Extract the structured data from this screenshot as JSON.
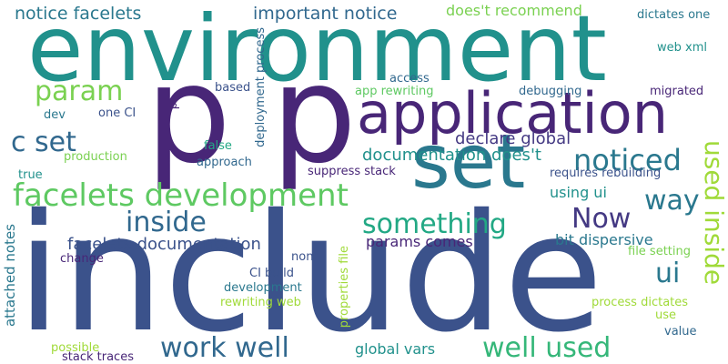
{
  "words": [
    {
      "text": "include",
      "color": "#3b528b"
    },
    {
      "text": "environment",
      "color": "#21918c"
    },
    {
      "text": "p",
      "color": "#482677"
    },
    {
      "text": "p",
      "color": "#482677"
    },
    {
      "text": "set",
      "color": "#2a788e"
    },
    {
      "text": "application",
      "color": "#482677"
    },
    {
      "text": "facelets development",
      "color": "#5ec962"
    },
    {
      "text": "c set",
      "color": "#31688e"
    },
    {
      "text": "param",
      "color": "#7ad151"
    },
    {
      "text": "something",
      "color": "#22a884"
    },
    {
      "text": "inside",
      "color": "#31688e"
    },
    {
      "text": "noticed",
      "color": "#2a788e"
    },
    {
      "text": "Now",
      "color": "#443983"
    },
    {
      "text": "work well",
      "color": "#31688e"
    },
    {
      "text": "well used",
      "color": "#35b779"
    },
    {
      "text": "way",
      "color": "#2a788e"
    },
    {
      "text": "used inside",
      "color": "#a0da39"
    },
    {
      "text": "ui",
      "color": "#2a788e"
    },
    {
      "text": "notice facelets",
      "color": "#2a788e"
    },
    {
      "text": "important notice",
      "color": "#31688e"
    },
    {
      "text": "does't recommend",
      "color": "#7ad151"
    },
    {
      "text": "documentation does't",
      "color": "#21918c"
    },
    {
      "text": "declare global",
      "color": "#443983"
    },
    {
      "text": "facelets documentation",
      "color": "#3b528b"
    },
    {
      "text": "params comes",
      "color": "#482677"
    },
    {
      "text": "bit dispersive",
      "color": "#2a788e"
    },
    {
      "text": "global vars",
      "color": "#21918c"
    },
    {
      "text": "using ui",
      "color": "#21918c"
    },
    {
      "text": "suppress stack",
      "color": "#482677"
    },
    {
      "text": "requires rebuilding",
      "color": "#3b528b"
    },
    {
      "text": "file setting",
      "color": "#7ad151"
    },
    {
      "text": "dictates one",
      "color": "#2a788e"
    },
    {
      "text": "web xml",
      "color": "#21918c"
    },
    {
      "text": "access",
      "color": "#31688e"
    },
    {
      "text": "app rewriting",
      "color": "#5ec962"
    },
    {
      "text": "debugging",
      "color": "#31688e"
    },
    {
      "text": "migrated",
      "color": "#482677"
    },
    {
      "text": "based",
      "color": "#3b528b"
    },
    {
      "text": "one CI",
      "color": "#3b528b"
    },
    {
      "text": "dev",
      "color": "#2a788e"
    },
    {
      "text": "false",
      "color": "#22a884"
    },
    {
      "text": "production",
      "color": "#7ad151"
    },
    {
      "text": "approach",
      "color": "#31688e"
    },
    {
      "text": "true",
      "color": "#21918c"
    },
    {
      "text": "non",
      "color": "#3b528b"
    },
    {
      "text": "change",
      "color": "#482677"
    },
    {
      "text": "CI build",
      "color": "#3b528b"
    },
    {
      "text": "development",
      "color": "#2a788e"
    },
    {
      "text": "rewriting web",
      "color": "#a0da39"
    },
    {
      "text": "possible",
      "color": "#a0da39"
    },
    {
      "text": "stack traces",
      "color": "#482677"
    },
    {
      "text": "process dictates",
      "color": "#a0da39"
    },
    {
      "text": "use",
      "color": "#a0da39"
    },
    {
      "text": "value",
      "color": "#31688e"
    },
    {
      "text": "deployment process",
      "color": "#31688e"
    },
    {
      "text": "p",
      "color": "#482677"
    },
    {
      "text": "attached notes",
      "color": "#2a788e"
    },
    {
      "text": "properties file",
      "color": "#a0da39"
    }
  ]
}
